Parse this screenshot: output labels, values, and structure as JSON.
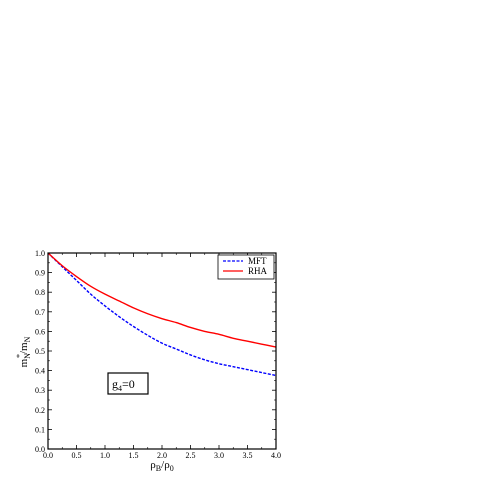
{
  "chart_data": {
    "type": "line",
    "xlabel_main": "ρ",
    "xlabel_sub1": "B",
    "xlabel_slash": "/ρ",
    "xlabel_sub2": "0",
    "ylabel_main": "m",
    "ylabel_sup": "*",
    "ylabel_sub1": "N",
    "ylabel_slash": "/m",
    "ylabel_sub2": "N",
    "xlim": [
      0.0,
      4.0
    ],
    "ylim": [
      0.0,
      1.0
    ],
    "x_ticks": [
      "0.0",
      "0.5",
      "1.0",
      "1.5",
      "2.0",
      "2.5",
      "3.0",
      "3.5",
      "4.0"
    ],
    "y_ticks": [
      "0.0",
      "0.1",
      "0.2",
      "0.3",
      "0.4",
      "0.5",
      "0.6",
      "0.7",
      "0.8",
      "0.9",
      "1.0"
    ],
    "legend_position": "top-right",
    "annotation": {
      "main": "g",
      "sub": "4",
      "rest": "=0"
    },
    "series": [
      {
        "name": "MFT",
        "color": "#0000ff",
        "style": "dashed",
        "x": [
          0.0,
          0.25,
          0.5,
          0.75,
          1.0,
          1.25,
          1.5,
          1.75,
          2.0,
          2.25,
          2.5,
          2.75,
          3.0,
          3.25,
          3.5,
          3.75,
          4.0
        ],
        "y": [
          1.0,
          0.93,
          0.86,
          0.79,
          0.73,
          0.675,
          0.625,
          0.58,
          0.54,
          0.51,
          0.48,
          0.455,
          0.435,
          0.42,
          0.405,
          0.39,
          0.375
        ]
      },
      {
        "name": "RHA",
        "color": "#ff0000",
        "style": "solid",
        "x": [
          0.0,
          0.25,
          0.5,
          0.75,
          1.0,
          1.25,
          1.5,
          1.75,
          2.0,
          2.25,
          2.5,
          2.75,
          3.0,
          3.25,
          3.5,
          3.75,
          4.0
        ],
        "y": [
          1.0,
          0.935,
          0.88,
          0.83,
          0.79,
          0.755,
          0.72,
          0.69,
          0.665,
          0.645,
          0.62,
          0.6,
          0.585,
          0.565,
          0.55,
          0.535,
          0.52
        ]
      }
    ]
  }
}
